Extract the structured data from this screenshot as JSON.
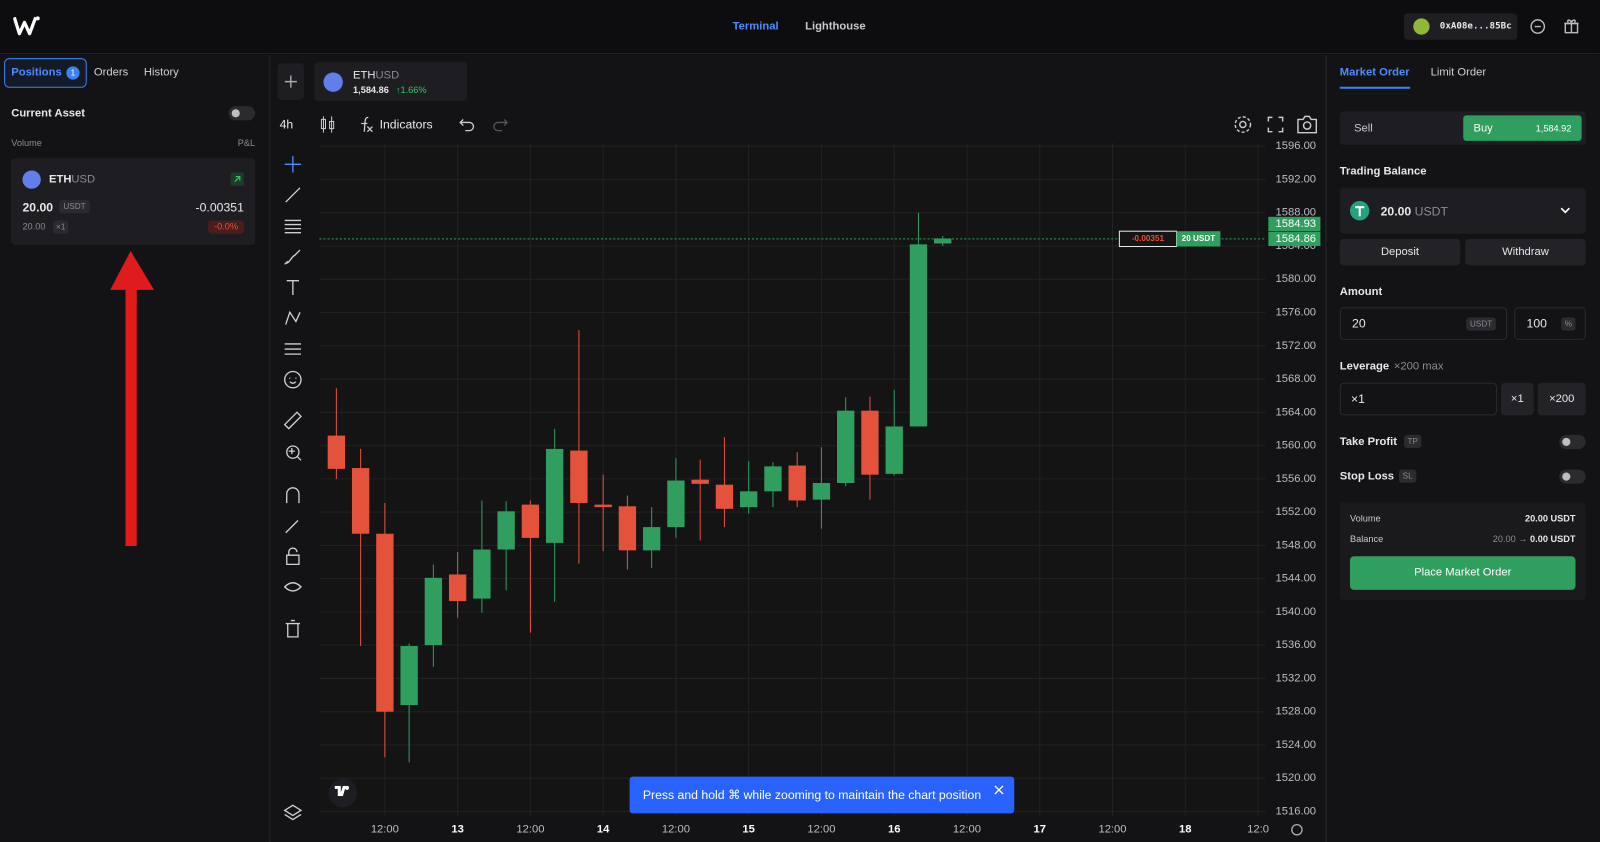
{
  "header": {
    "tabs": [
      "Terminal",
      "Lighthouse"
    ],
    "wallet": "0xA08e...85Bc"
  },
  "left_panel": {
    "tabs": [
      "Positions",
      "Orders",
      "History"
    ],
    "positions_count": 1,
    "current_asset": "Current Asset",
    "volume": "Volume",
    "pnl": "P&L",
    "position": {
      "base": "ETH",
      "quote": "USD",
      "volume": "20.00",
      "volume_unit": "USDT",
      "pnl": "-0.00351",
      "margin": "20.00",
      "leverage": "×1",
      "pnl_percent": "-0.0%"
    }
  },
  "symbol": {
    "base": "ETH",
    "quote": "USD",
    "price": "1,584.86",
    "change": "↑1.66%"
  },
  "toolbar": {
    "interval": "4h",
    "indicators": "Indicators"
  },
  "chart_data": {
    "type": "candlestick",
    "x": [
      0,
      1,
      2,
      3,
      4,
      5,
      6,
      7,
      8,
      9,
      10,
      11,
      12,
      13,
      14,
      15,
      16,
      17,
      18,
      19,
      20,
      21,
      22,
      23,
      24,
      25
    ],
    "open": [
      1561.2,
      1557.3,
      1549.4,
      1528.8,
      1536.0,
      1544.5,
      1541.6,
      1547.5,
      1552.9,
      1548.3,
      1559.4,
      1552.9,
      1552.7,
      1547.4,
      1550.2,
      1555.9,
      1555.3,
      1552.6,
      1554.5,
      1557.6,
      1553.5,
      1555.5,
      1564.2,
      1556.6,
      1562.3,
      1584.3
    ],
    "high": [
      1566.9,
      1559.6,
      1553.1,
      1536.2,
      1545.7,
      1547.2,
      1553.4,
      1553.3,
      1553.4,
      1562.0,
      1573.9,
      1556.5,
      1554.0,
      1552.6,
      1558.5,
      1558.3,
      1561.0,
      1558.1,
      1558.0,
      1559.2,
      1559.8,
      1565.8,
      1565.9,
      1566.7,
      1588.0,
      1585.2
    ],
    "low": [
      1556.0,
      1535.9,
      1522.5,
      1521.9,
      1533.4,
      1539.3,
      1539.9,
      1542.6,
      1537.5,
      1541.2,
      1545.8,
      1547.3,
      1545.1,
      1545.3,
      1548.9,
      1548.6,
      1550.2,
      1551.8,
      1552.6,
      1552.6,
      1550.0,
      1555.1,
      1553.5,
      1556.4,
      1562.3,
      1584.0
    ],
    "close": [
      1557.2,
      1549.4,
      1528.0,
      1535.9,
      1544.1,
      1541.3,
      1547.5,
      1552.1,
      1548.9,
      1559.6,
      1553.1,
      1552.6,
      1547.4,
      1550.2,
      1555.8,
      1555.4,
      1552.4,
      1554.5,
      1557.5,
      1553.4,
      1555.5,
      1564.2,
      1556.5,
      1562.3,
      1584.2,
      1584.9
    ],
    "up_color": "#2f9e5f",
    "down_color": "#e4523b",
    "xlim": [
      -0.7,
      38.3
    ],
    "ylim": [
      1515.4,
      1596.4
    ],
    "yticks": [
      {
        "value": 1596,
        "label": "1596.00"
      },
      {
        "value": 1592,
        "label": "1592.00"
      },
      {
        "value": 1588,
        "label": "1588.00"
      },
      {
        "value": 1584,
        "label": "1584.00"
      },
      {
        "value": 1580,
        "label": "1580.00"
      },
      {
        "value": 1576,
        "label": "1576.00"
      },
      {
        "value": 1572,
        "label": "1572.00"
      },
      {
        "value": 1568,
        "label": "1568.00"
      },
      {
        "value": 1564,
        "label": "1564.00"
      },
      {
        "value": 1560,
        "label": "1560.00"
      },
      {
        "value": 1556,
        "label": "1556.00"
      },
      {
        "value": 1552,
        "label": "1552.00"
      },
      {
        "value": 1548,
        "label": "1548.00"
      },
      {
        "value": 1544,
        "label": "1544.00"
      },
      {
        "value": 1540,
        "label": "1540.00"
      },
      {
        "value": 1536,
        "label": "1536.00"
      },
      {
        "value": 1532,
        "label": "1532.00"
      },
      {
        "value": 1528,
        "label": "1528.00"
      },
      {
        "value": 1524,
        "label": "1524.00"
      },
      {
        "value": 1520,
        "label": "1520.00"
      },
      {
        "value": 1516,
        "label": "1516.00"
      }
    ],
    "xticks": [
      {
        "value": 2,
        "label": "12:00"
      },
      {
        "value": 5,
        "label": "13"
      },
      {
        "value": 8,
        "label": "12:00"
      },
      {
        "value": 11,
        "label": "14"
      },
      {
        "value": 14,
        "label": "12:00"
      },
      {
        "value": 17,
        "label": "15"
      },
      {
        "value": 20,
        "label": "12:00"
      },
      {
        "value": 23,
        "label": "16"
      },
      {
        "value": 26,
        "label": "12:00"
      },
      {
        "value": 29,
        "label": "17"
      },
      {
        "value": 32,
        "label": "12:00"
      },
      {
        "value": 35,
        "label": "18"
      },
      {
        "value": 38,
        "label": "12:0"
      }
    ],
    "grid": true,
    "last_price": 1584.86,
    "ask_price": 1584.93,
    "position_line": {
      "pnl": "-0.00351",
      "size": "20 USDT"
    }
  },
  "toast": "Press and hold ⌘ while zooming to maintain the chart position",
  "right_panel": {
    "tabs": [
      "Market Order",
      "Limit Order"
    ],
    "sell": "Sell",
    "buy": "Buy",
    "buy_price": "1,584.92",
    "trading_balance": "Trading Balance",
    "balance": "20.00",
    "balance_unit": "USDT",
    "deposit": "Deposit",
    "withdraw": "Withdraw",
    "amount": "Amount",
    "amount_value": "20",
    "amount_unit": "USDT",
    "percent_value": "100",
    "percent_unit": "%",
    "leverage": "Leverage",
    "leverage_max": "×200 max",
    "leverage_value": "×1",
    "leverage_options": [
      "×1",
      "×200"
    ],
    "take_profit": "Take Profit",
    "tp": "TP",
    "stop_loss": "Stop Loss",
    "sl": "SL",
    "summary": {
      "volume_label": "Volume",
      "volume": "20.00 USDT",
      "balance_label": "Balance",
      "balance_from": "20.00",
      "balance_arrow": "→",
      "balance_to": "0.00 USDT"
    },
    "submit": "Place Market Order"
  }
}
